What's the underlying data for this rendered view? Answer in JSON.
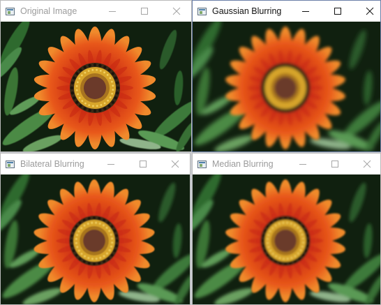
{
  "windows": {
    "original": {
      "title": "Original Image",
      "icon": "opencv-window-icon",
      "state": "inactive"
    },
    "gaussian": {
      "title": "Gaussian Blurring",
      "icon": "opencv-window-icon",
      "state": "active"
    },
    "bilateral": {
      "title": "Bilateral Blurring",
      "icon": "opencv-window-icon",
      "state": "inactive"
    },
    "median": {
      "title": "Median Blurring",
      "icon": "opencv-window-icon",
      "state": "inactive"
    }
  },
  "controls": [
    "minimize-icon",
    "maximize-icon",
    "close-icon"
  ],
  "image_subject": "red-orange gazania flower on dark green foliage background",
  "colors": {
    "petal_outer": "#e8581a",
    "petal_inner": "#c82812",
    "center_ring": "#d7a52a",
    "center_disc": "#6b3a2a",
    "foliage_dark": "#10200f",
    "foliage_green": "#3f7a3a",
    "active_title_text": "#111111",
    "inactive_title_text": "#9b9b9b"
  }
}
